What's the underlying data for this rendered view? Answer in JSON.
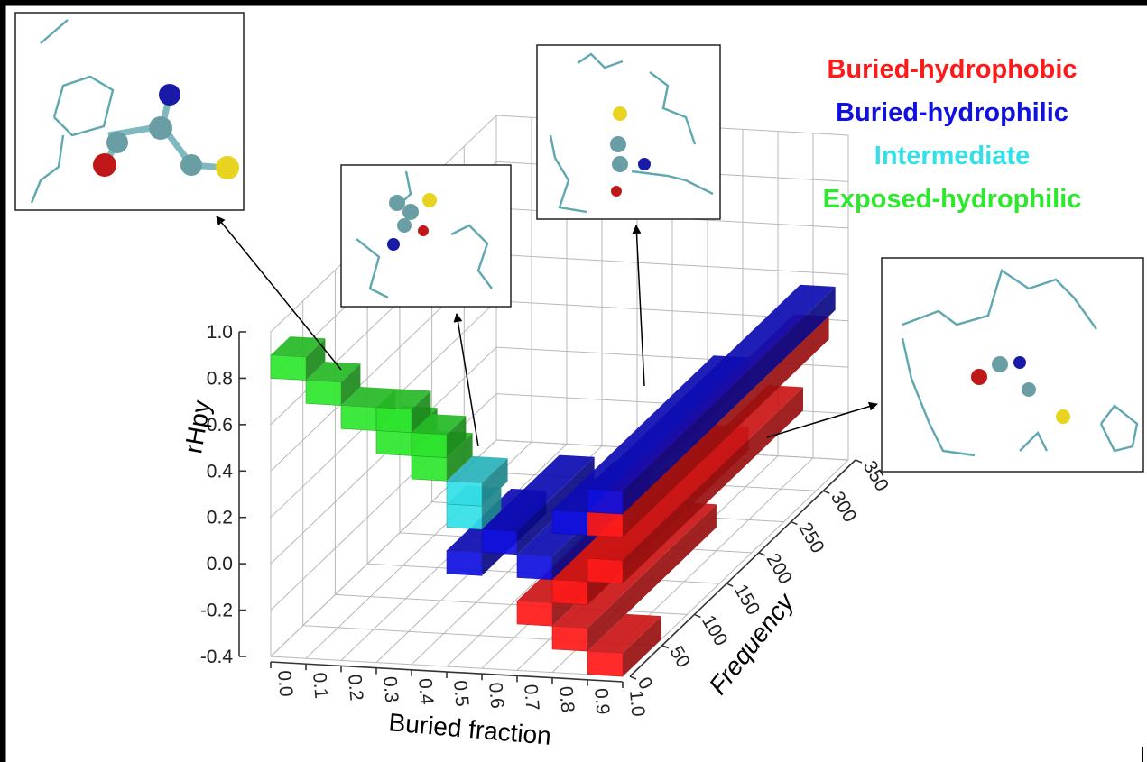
{
  "chart_data": {
    "type": "bar3d",
    "x_label": "Buried fraction",
    "y_label": "rHpy",
    "z_label": "Frequency",
    "xlim": [
      0,
      1
    ],
    "ylim": [
      -0.4,
      1
    ],
    "zlim": [
      0,
      350
    ],
    "xticks": [
      {
        "value": 0,
        "label": "0.0"
      },
      0.1,
      0.2,
      0.3,
      0.4,
      0.5,
      0.6,
      0.7,
      0.8,
      0.9,
      {
        "value": 1,
        "label": "1.0"
      }
    ],
    "yticks": [
      {
        "value": 1,
        "label": "1.0"
      },
      0.8,
      0.6,
      0.4,
      0.2,
      {
        "value": 0,
        "label": "0.0"
      },
      -0.2,
      -0.4
    ],
    "zticks": [
      0,
      50,
      100,
      150,
      200,
      250,
      300,
      350
    ],
    "grid": true,
    "legend": "top-right",
    "series": [
      {
        "name": "Buried-hydrophobic",
        "color": "#ff1a1a",
        "x": [
          0.7,
          0.8,
          0.8,
          0.9,
          0.9,
          0.9
        ],
        "y": [
          -0.2,
          -0.3,
          -0.1,
          0.2,
          -0.4,
          0.0
        ],
        "values": [
          120,
          200,
          250,
          320,
          60,
          280
        ]
      },
      {
        "name": "Buried-hydrophilic",
        "color": "#1010e0",
        "x": [
          0.5,
          0.6,
          0.7,
          0.8,
          0.9
        ],
        "y": [
          0.0,
          0.1,
          0.0,
          0.2,
          0.3
        ],
        "values": [
          100,
          120,
          150,
          250,
          330
        ]
      },
      {
        "name": "Intermediate",
        "color": "#33e0e8",
        "x": [
          0.5,
          0.5
        ],
        "y": [
          0.2,
          0.3
        ],
        "values": [
          30,
          40
        ]
      },
      {
        "name": "Exposed-hydrophilic",
        "color": "#2ee82e",
        "x": [
          0.0,
          0.1,
          0.2,
          0.3,
          0.3,
          0.4,
          0.4
        ],
        "y": [
          0.8,
          0.7,
          0.6,
          0.5,
          0.6,
          0.4,
          0.5
        ],
        "values": [
          30,
          30,
          30,
          40,
          30,
          40,
          30
        ]
      }
    ]
  }
}
